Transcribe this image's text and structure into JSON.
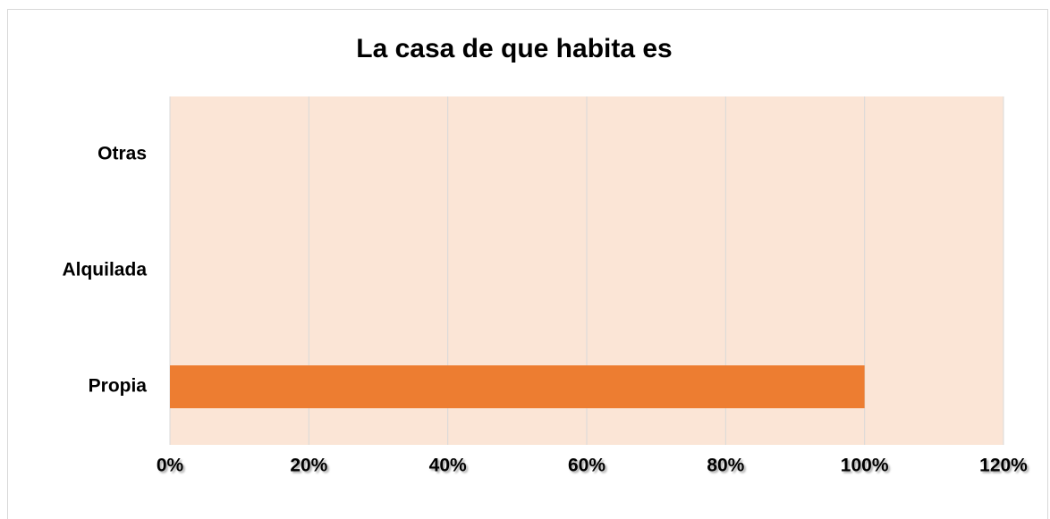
{
  "chart_data": {
    "type": "bar",
    "orientation": "horizontal",
    "title": "La casa de que habita es",
    "categories": [
      "Propia",
      "Alquilada",
      "Otras"
    ],
    "values": [
      100,
      0,
      0
    ],
    "color": "#ed7d31",
    "plot_background": "#fbe5d6",
    "xlim": [
      0,
      120
    ],
    "xticks": [
      {
        "value": 0,
        "label": "0%"
      },
      {
        "value": 20,
        "label": "20%"
      },
      {
        "value": 40,
        "label": "40%"
      },
      {
        "value": 60,
        "label": "60%"
      },
      {
        "value": 80,
        "label": "80%"
      },
      {
        "value": 100,
        "label": "100%"
      },
      {
        "value": 120,
        "label": "120%"
      }
    ],
    "grid": true
  }
}
